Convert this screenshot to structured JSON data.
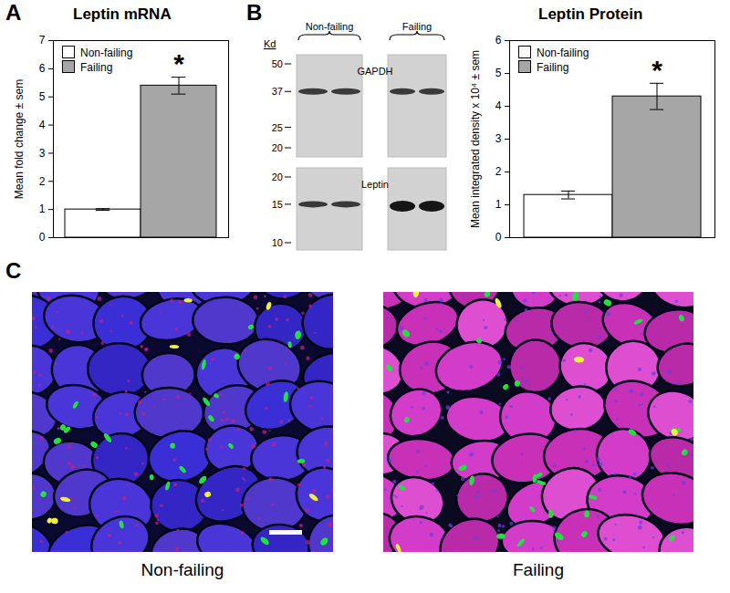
{
  "panels": [
    "A",
    "B",
    "C"
  ],
  "chart_data": [
    {
      "type": "bar",
      "title": "Leptin mRNA",
      "categories": [
        "Non-failing",
        "Failing"
      ],
      "values": [
        1,
        5.4
      ],
      "errors": [
        0.03,
        0.3
      ],
      "colors": [
        "#ffffff",
        "#a6a6a6"
      ],
      "ylabel": "Mean fold change ± sem",
      "ylim": [
        0,
        7
      ],
      "yticks": [
        0,
        1,
        2,
        3,
        4,
        5,
        6,
        7
      ],
      "legend": "top-left",
      "tick_labels": "y",
      "annotations": [
        {
          "text": "*",
          "category": "Failing"
        }
      ]
    },
    {
      "type": "bar",
      "title": "Leptin Protein",
      "categories": [
        "Non-failing",
        "Failing"
      ],
      "values": [
        1.3,
        4.3
      ],
      "errors": [
        0.12,
        0.4
      ],
      "colors": [
        "#ffffff",
        "#a6a6a6"
      ],
      "ylabel": "Mean integrated density x 10⁴ ± sem",
      "ylim": [
        0,
        6
      ],
      "yticks": [
        0,
        1,
        2,
        3,
        4,
        5,
        6
      ],
      "legend": "top-left",
      "tick_labels": "y",
      "annotations": [
        {
          "text": "*",
          "category": "Failing"
        }
      ]
    }
  ],
  "blot": {
    "unit_label": "Kd",
    "groups": [
      "Non-failing",
      "Failing"
    ],
    "panels": [
      {
        "label": "GAPDH",
        "ladder": [
          50,
          37,
          25,
          20
        ]
      },
      {
        "label": "Leptin",
        "ladder": [
          20,
          15,
          10
        ]
      }
    ]
  },
  "micrographs": [
    "Non-failing",
    "Failing"
  ]
}
